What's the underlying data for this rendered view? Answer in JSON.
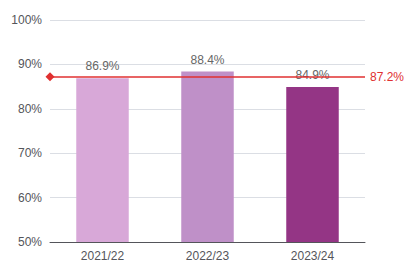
{
  "chart_data": {
    "type": "bar",
    "categories": [
      "2021/22",
      "2022/23",
      "2023/24"
    ],
    "values": [
      86.9,
      88.4,
      84.9
    ],
    "value_labels": [
      "86.9%",
      "88.4%",
      "84.9%"
    ],
    "data_labels": true,
    "colors": [
      "#d8a8d8",
      "#bf90c8",
      "#943585"
    ],
    "reference_line": {
      "value": 87.2,
      "label": "87.2%",
      "color": "#e03030"
    },
    "ylim": [
      50,
      100
    ],
    "yticks": [
      {
        "value": 50,
        "label": "50%"
      },
      {
        "value": 60,
        "label": "60%"
      },
      {
        "value": 70,
        "label": "70%"
      },
      {
        "value": 80,
        "label": "80%"
      },
      {
        "value": 90,
        "label": "90%"
      },
      {
        "value": 100,
        "label": "100%"
      }
    ],
    "grid": true
  }
}
